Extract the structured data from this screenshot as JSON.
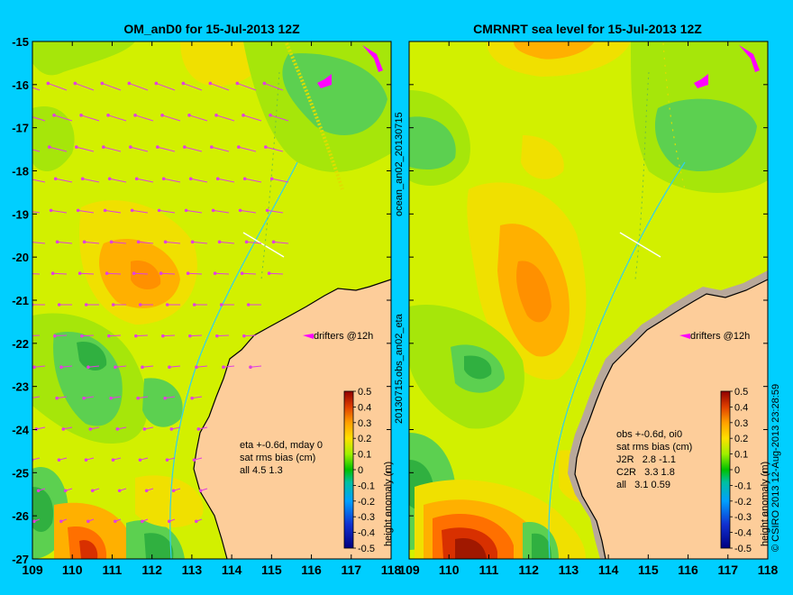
{
  "colors": {
    "background": "#00cfff",
    "land": "#fdcd9a",
    "land_mask": "#b8a89a",
    "coast": "#000000",
    "isobath": "#2fd0f0",
    "arrow": "#e040e0",
    "drifter": "#ff00ff",
    "obs_track": "#dede00"
  },
  "left_panel": {
    "title": "OM_anD0 for 15-Jul-2013 12Z",
    "drifters_label": "drifters @12h",
    "stats": [
      "eta +-0.6d, mday 0",
      "sat rms bias (cm)",
      "all 4.5 1.3"
    ],
    "side_labels": [
      "ocean_an02_20130715",
      "20130715.obs_an02_eta"
    ]
  },
  "right_panel": {
    "title": "CMRNRT sea level  for 15-Jul-2013 12Z",
    "drifters_label": "drifters @12h",
    "stats": [
      "obs +-0.6d, oi0",
      "sat rms bias (cm)",
      "J2R   2.8 -1.1",
      "C2R   3.3 1.8",
      "all   3.1 0.59"
    ],
    "copyright": "© CSIRO 2013   12-Aug-2013 23:28:59"
  },
  "axes": {
    "lon_ticks": [
      "109",
      "110",
      "111",
      "112",
      "113",
      "114",
      "115",
      "116",
      "117",
      "118"
    ],
    "lat_ticks": [
      "-15",
      "-16",
      "-17",
      "-18",
      "-19",
      "-20",
      "-21",
      "-22",
      "-23",
      "-24",
      "-25",
      "-26",
      "-27"
    ]
  },
  "colorbar": {
    "label": "height anomaly (m)",
    "ticks": [
      "0.5",
      "0.4",
      "0.3",
      "0.2",
      "0.1",
      "0",
      "-0.1",
      "-0.2",
      "-0.3",
      "-0.4",
      "-0.5"
    ]
  }
}
